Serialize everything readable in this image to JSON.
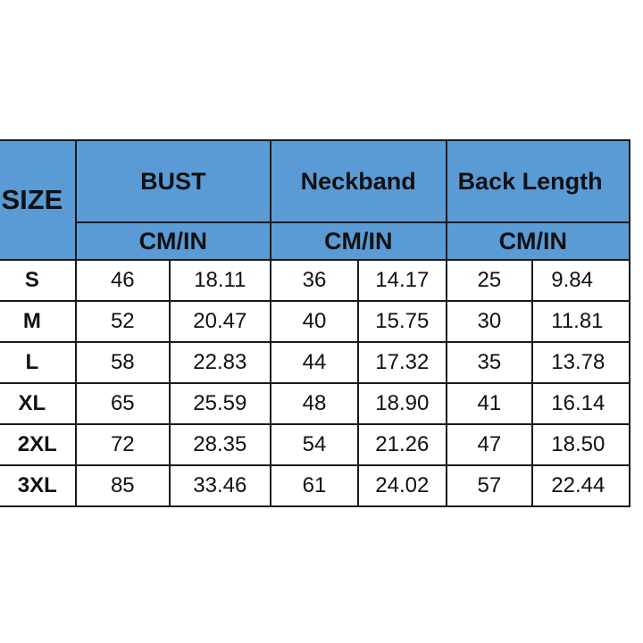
{
  "table": {
    "size_header": "SIZE",
    "groups": [
      {
        "label": "BUST",
        "unit": "CM/IN"
      },
      {
        "label": "Neckband",
        "unit": "CM/IN"
      },
      {
        "label": "Back Length",
        "unit": "CM/IN"
      }
    ],
    "rows": [
      {
        "size": "S",
        "values": [
          "46",
          "18.11",
          "36",
          "14.17",
          "25",
          "9.84"
        ]
      },
      {
        "size": "M",
        "values": [
          "52",
          "20.47",
          "40",
          "15.75",
          "30",
          "11.81"
        ]
      },
      {
        "size": "L",
        "values": [
          "58",
          "22.83",
          "44",
          "17.32",
          "35",
          "13.78"
        ]
      },
      {
        "size": "XL",
        "values": [
          "65",
          "25.59",
          "48",
          "18.90",
          "41",
          "16.14"
        ]
      },
      {
        "size": "2XL",
        "values": [
          "72",
          "28.35",
          "54",
          "21.26",
          "47",
          "18.50"
        ]
      },
      {
        "size": "3XL",
        "values": [
          "85",
          "33.46",
          "61",
          "24.02",
          "57",
          "22.44"
        ]
      }
    ],
    "header_color": "#5b9bd5"
  }
}
